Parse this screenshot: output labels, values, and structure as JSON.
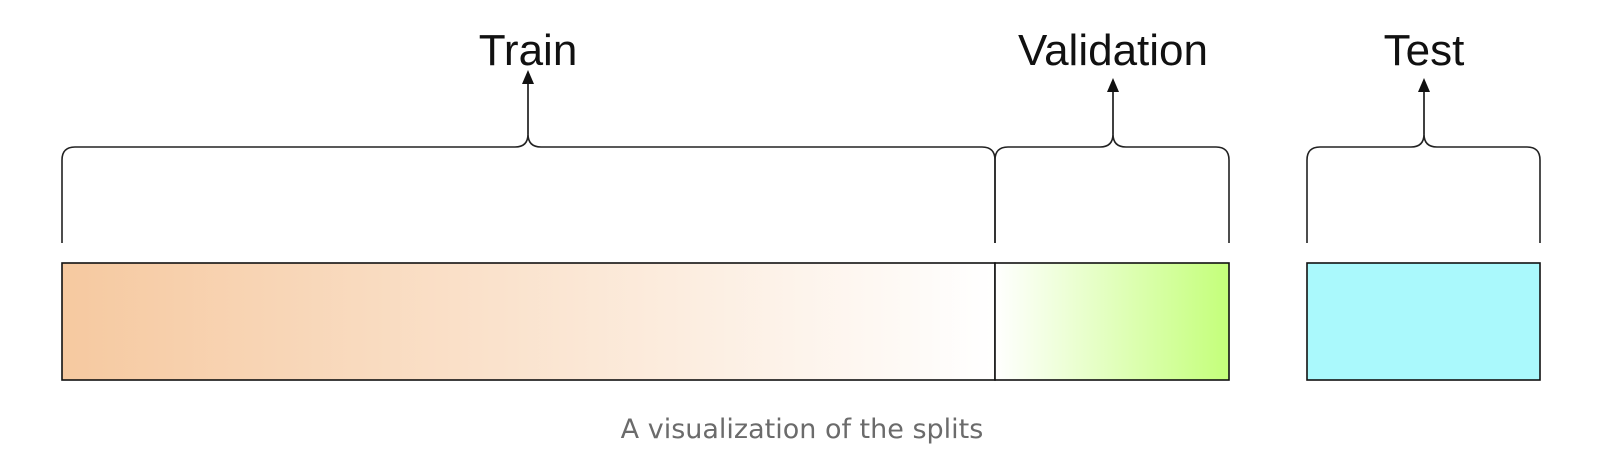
{
  "splits": [
    {
      "key": "train",
      "label": "Train",
      "colors": [
        "#f6c9a0",
        "#ffffff"
      ]
    },
    {
      "key": "validation",
      "label": "Validation",
      "colors": [
        "#ffffff",
        "#c4ff7a"
      ]
    },
    {
      "key": "test",
      "label": "Test",
      "colors": [
        "#aaf9fc",
        "#aaf9fc"
      ]
    }
  ],
  "caption": "A visualization of the splits"
}
